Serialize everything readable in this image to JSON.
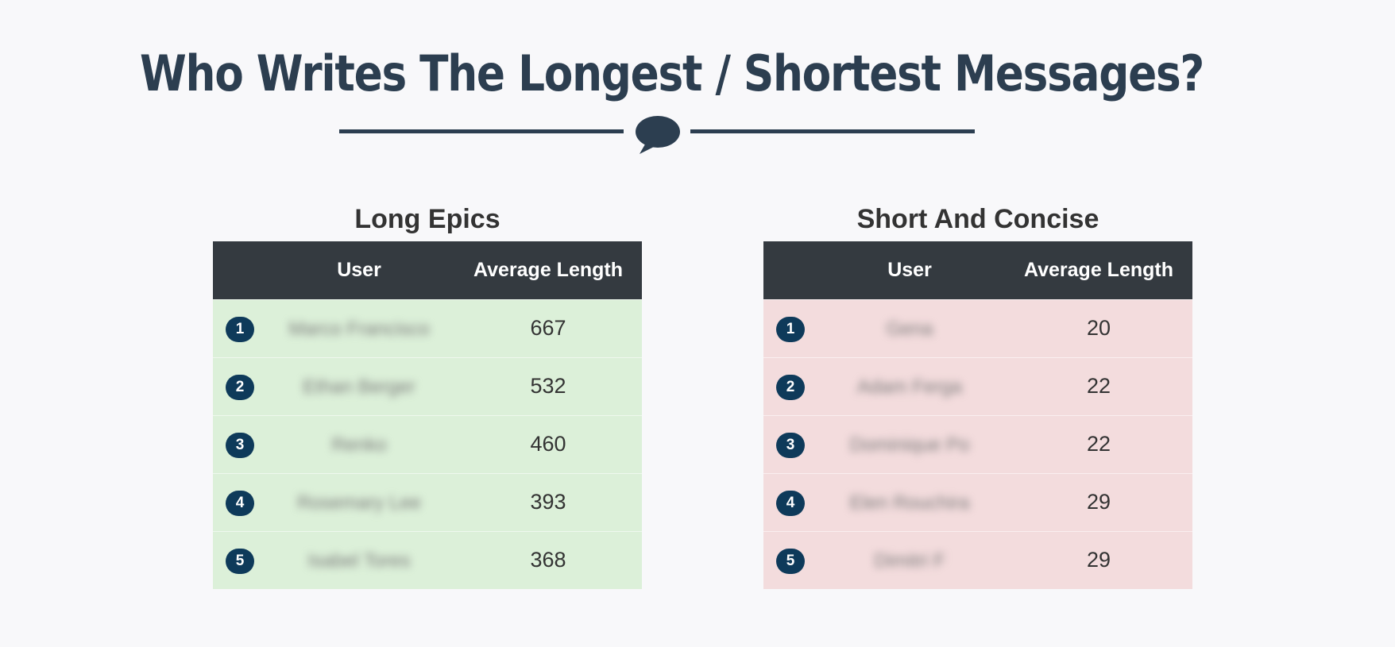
{
  "page": {
    "title": "Who Writes The Longest / Shortest Messages?",
    "divider_icon": "speech-bubble-icon",
    "primary_color": "#2c3e50"
  },
  "tables": {
    "long": {
      "title": "Long Epics",
      "columns": {
        "user": "User",
        "avg": "Average Length"
      },
      "row_color": "#dcf0d9",
      "rows": [
        {
          "rank": "1",
          "user": "Marco Francisco",
          "avg": "667"
        },
        {
          "rank": "2",
          "user": "Ethan Berger",
          "avg": "532"
        },
        {
          "rank": "3",
          "user": "Renko",
          "avg": "460"
        },
        {
          "rank": "4",
          "user": "Rosemary Lee",
          "avg": "393"
        },
        {
          "rank": "5",
          "user": "Isabel Tores",
          "avg": "368"
        }
      ]
    },
    "short": {
      "title": "Short And Concise",
      "columns": {
        "user": "User",
        "avg": "Average Length"
      },
      "row_color": "#f3dcdd",
      "rows": [
        {
          "rank": "1",
          "user": "Gena",
          "avg": "20"
        },
        {
          "rank": "2",
          "user": "Adam Ferga",
          "avg": "22"
        },
        {
          "rank": "3",
          "user": "Dominique Po",
          "avg": "22"
        },
        {
          "rank": "4",
          "user": "Elen Rouchira",
          "avg": "29"
        },
        {
          "rank": "5",
          "user": "Dimitri F",
          "avg": "29"
        }
      ]
    }
  },
  "header_color": "#343a40",
  "badge_color": "#0e3a5a"
}
